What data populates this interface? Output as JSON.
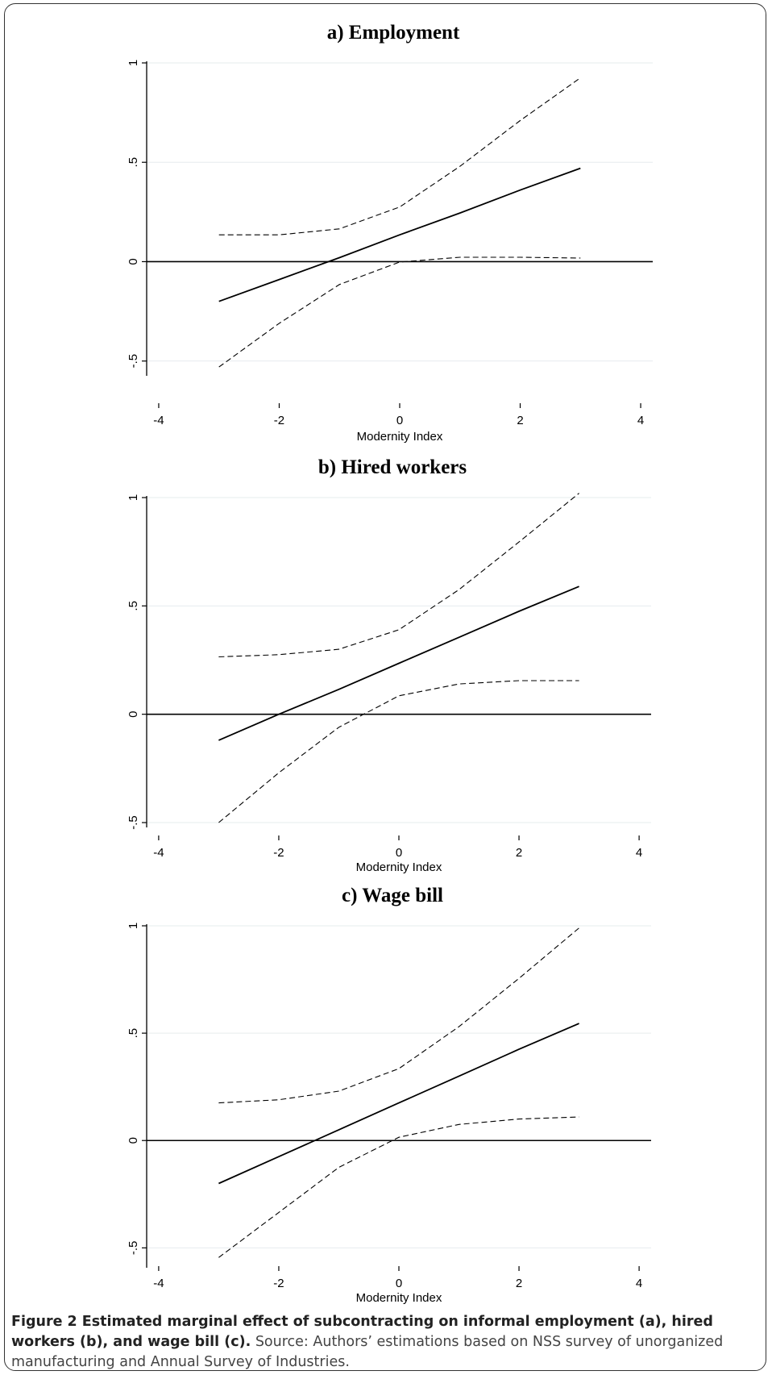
{
  "figure_label": "Figure 2 Estimated marginal effect of subcontracting on informal employment (a), hired workers (b), and wage bill (c).",
  "caption_text": " Source: Authors’ estimations based on NSS survey of unorganized manufacturing and Annual Survey of Industries.",
  "colors": {
    "line": "#000000",
    "grid": "#e6ecee",
    "text": "#000000"
  },
  "chart_data": [
    {
      "type": "line",
      "title": "a) Employment",
      "xlabel": "Modernity Index",
      "ylabel": "",
      "xlim": [
        -4.2,
        4.2
      ],
      "ylim": [
        -0.55,
        1.0
      ],
      "xticks": [
        -4,
        -2,
        0,
        2,
        4
      ],
      "xtick_labels": [
        "-4",
        "-2",
        "0",
        "2",
        "4"
      ],
      "yticks": [
        -0.5,
        0,
        0.5,
        1
      ],
      "ytick_labels": [
        "-.5",
        "0",
        ".5",
        "1"
      ],
      "grid": true,
      "reference_line_y": 0,
      "x": [
        -3,
        -2,
        -1,
        0,
        1,
        2,
        3
      ],
      "series": [
        {
          "style": "solid",
          "values": [
            -0.2,
            -0.09,
            0.02,
            0.135,
            0.245,
            0.36,
            0.47
          ]
        },
        {
          "style": "dashed",
          "values": [
            0.135,
            0.135,
            0.165,
            0.275,
            0.48,
            0.71,
            0.925
          ]
        },
        {
          "style": "dashed",
          "values": [
            -0.53,
            -0.31,
            -0.115,
            -0.002,
            0.022,
            0.022,
            0.018
          ]
        }
      ]
    },
    {
      "type": "line",
      "title": "b) Hired workers",
      "xlabel": "Modernity Index",
      "ylabel": "",
      "xlim": [
        -4.2,
        4.2
      ],
      "ylim": [
        -0.5,
        1.0
      ],
      "xticks": [
        -4,
        -2,
        0,
        2,
        4
      ],
      "xtick_labels": [
        "-4",
        "-2",
        "0",
        "2",
        "4"
      ],
      "yticks": [
        -0.5,
        0,
        0.5,
        1
      ],
      "ytick_labels": [
        "-.5",
        "0",
        ".5",
        "1"
      ],
      "grid": true,
      "reference_line_y": 0,
      "x": [
        -3,
        -2,
        -1,
        0,
        1,
        2,
        3
      ],
      "series": [
        {
          "style": "solid",
          "values": [
            -0.12,
            0.0,
            0.115,
            0.235,
            0.355,
            0.475,
            0.59
          ]
        },
        {
          "style": "dashed",
          "values": [
            0.265,
            0.275,
            0.3,
            0.39,
            0.575,
            0.795,
            1.02
          ]
        },
        {
          "style": "dashed",
          "values": [
            -0.5,
            -0.27,
            -0.06,
            0.085,
            0.14,
            0.155,
            0.155
          ]
        }
      ]
    },
    {
      "type": "line",
      "title": "c) Wage bill",
      "xlabel": "Modernity Index",
      "ylabel": "",
      "xlim": [
        -4.2,
        4.2
      ],
      "ylim": [
        -0.57,
        1.0
      ],
      "xticks": [
        -4,
        -2,
        0,
        2,
        4
      ],
      "xtick_labels": [
        "-4",
        "-2",
        "0",
        "2",
        "4"
      ],
      "yticks": [
        -0.5,
        0,
        0.5,
        1
      ],
      "ytick_labels": [
        "-.5",
        "0",
        ".5",
        "1"
      ],
      "grid": true,
      "reference_line_y": 0,
      "x": [
        -3,
        -2,
        -1,
        0,
        1,
        2,
        3
      ],
      "series": [
        {
          "style": "solid",
          "values": [
            -0.2,
            -0.075,
            0.05,
            0.175,
            0.3,
            0.425,
            0.545
          ]
        },
        {
          "style": "dashed",
          "values": [
            0.175,
            0.19,
            0.23,
            0.335,
            0.53,
            0.755,
            0.99
          ]
        },
        {
          "style": "dashed",
          "values": [
            -0.545,
            -0.335,
            -0.125,
            0.015,
            0.075,
            0.1,
            0.11
          ]
        }
      ]
    }
  ]
}
